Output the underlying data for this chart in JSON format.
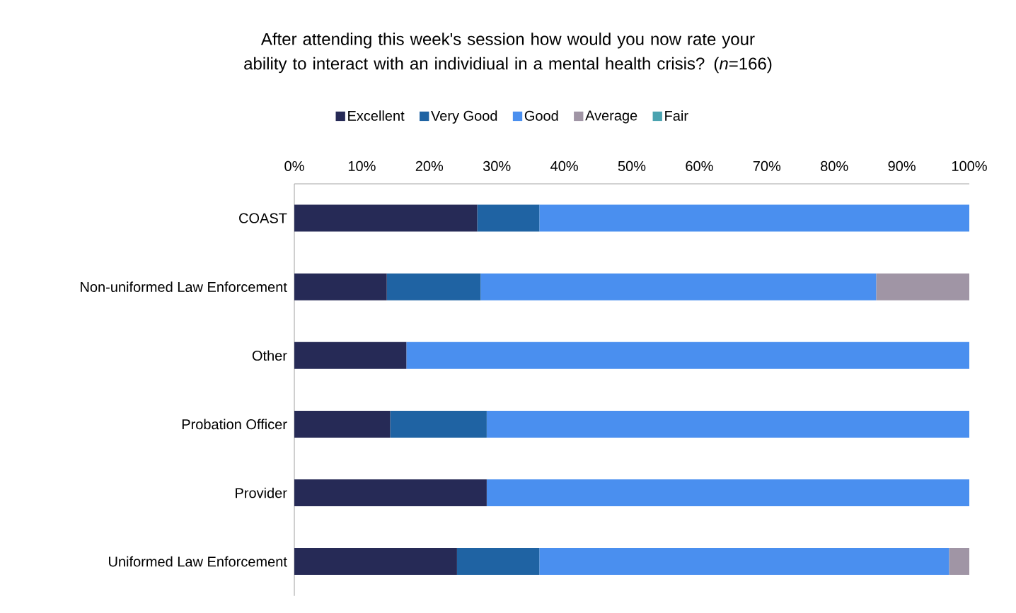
{
  "chart_data": {
    "type": "bar",
    "orientation": "horizontal",
    "stacked": true,
    "title": "After attending this week's session how would you now rate your ability to interact with an individiual in a mental health crisis? (*n*=166)",
    "categories": [
      "COAST",
      "Non-uniformed Law Enforcement",
      "Other",
      "Probation Officer",
      "Provider",
      "Uniformed Law Enforcement"
    ],
    "series": [
      {
        "name": "Excellent",
        "color": "#262a56",
        "values": [
          27.1,
          13.7,
          16.6,
          14.2,
          28.5,
          24.1
        ]
      },
      {
        "name": "Very Good",
        "color": "#1f63a3",
        "values": [
          9.2,
          13.9,
          0,
          14.3,
          0,
          12.2
        ]
      },
      {
        "name": "Good",
        "color": "#4a8fef",
        "values": [
          63.7,
          58.6,
          83.4,
          71.5,
          71.5,
          60.7
        ]
      },
      {
        "name": "Average",
        "color": "#a095a5",
        "values": [
          0,
          13.8,
          0,
          0,
          0,
          3.0
        ]
      },
      {
        "name": "Fair",
        "color": "#4aa3b0",
        "values": [
          0,
          0,
          0,
          0,
          0,
          0
        ]
      }
    ],
    "xlim": [
      0,
      100
    ],
    "xticks": [
      {
        "value": 0,
        "label": "0%"
      },
      {
        "value": 10,
        "label": "10%"
      },
      {
        "value": 20,
        "label": "20%"
      },
      {
        "value": 30,
        "label": "30%"
      },
      {
        "value": 40,
        "label": "40%"
      },
      {
        "value": 50,
        "label": "50%"
      },
      {
        "value": 60,
        "label": "60%"
      },
      {
        "value": 70,
        "label": "70%"
      },
      {
        "value": 80,
        "label": "80%"
      },
      {
        "value": 90,
        "label": "90%"
      },
      {
        "value": 100,
        "label": "100%"
      }
    ],
    "legend": "top",
    "grid": false
  }
}
